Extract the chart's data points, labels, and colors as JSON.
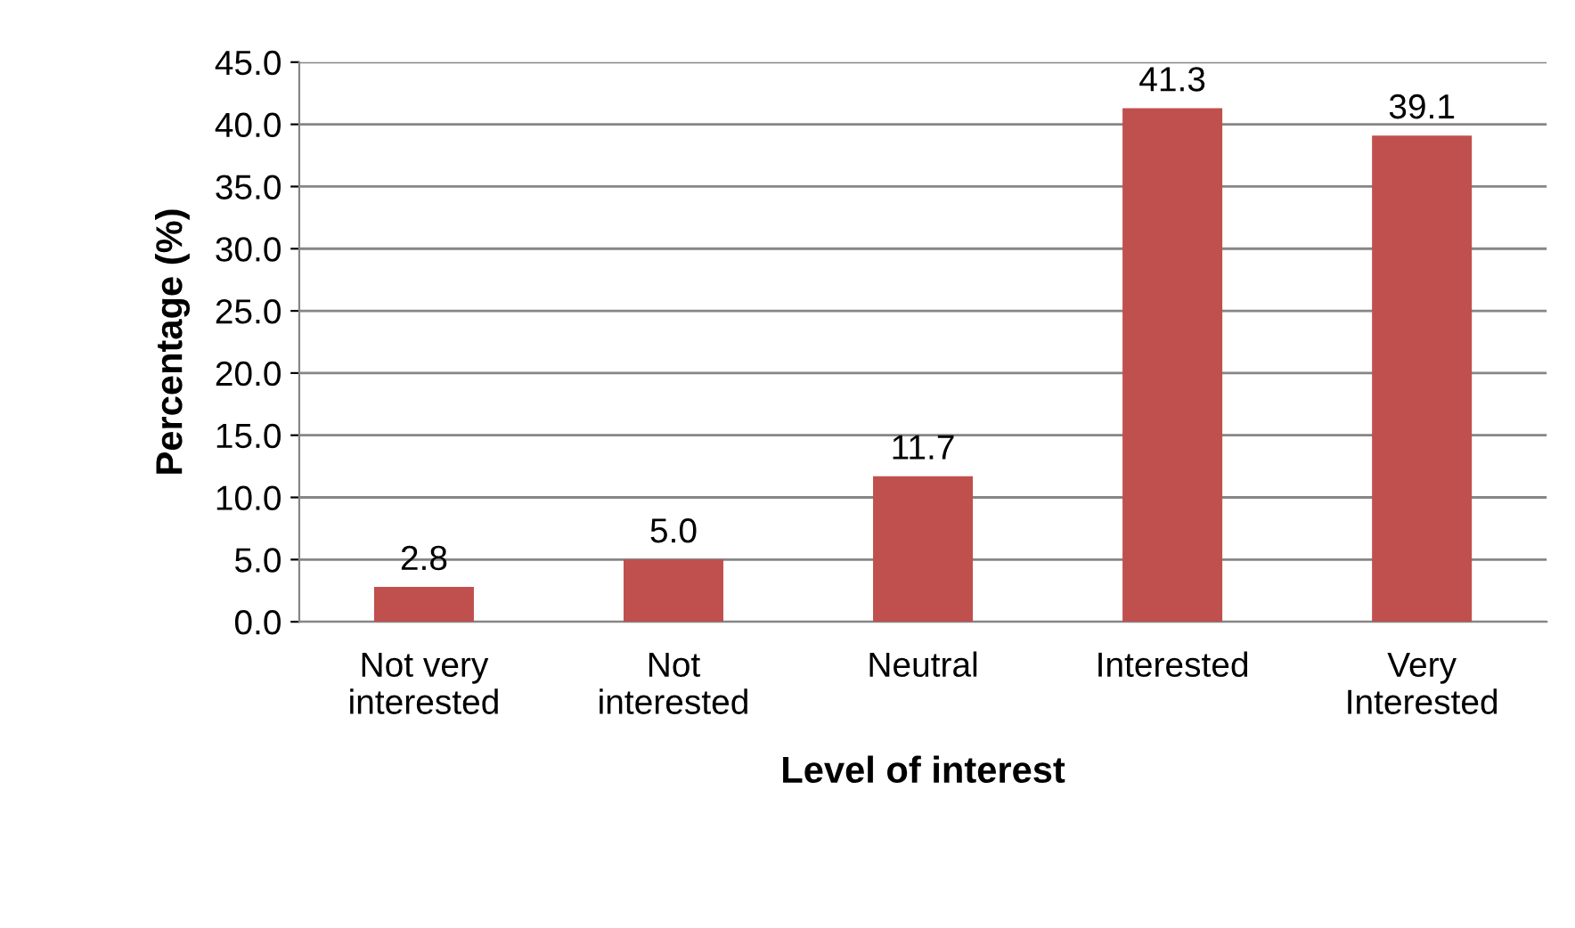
{
  "chart_data": {
    "type": "bar",
    "xlabel": "Level of interest",
    "ylabel": "Percentage (%)",
    "categories": [
      "Not very\ninterested",
      "Not\ninterested",
      "Neutral",
      "Interested",
      "Very\nInterested"
    ],
    "values": [
      2.8,
      5.0,
      11.7,
      41.3,
      39.1
    ],
    "value_labels": [
      "2.8",
      "5.0",
      "11.7",
      "41.3",
      "39.1"
    ],
    "color": "#c0504d",
    "ylim": [
      0,
      45
    ],
    "yticks": [
      {
        "value": 0,
        "label": "0.0"
      },
      {
        "value": 5,
        "label": "5.0"
      },
      {
        "value": 10,
        "label": "10.0"
      },
      {
        "value": 15,
        "label": "15.0"
      },
      {
        "value": 20,
        "label": "20.0"
      },
      {
        "value": 25,
        "label": "25.0"
      },
      {
        "value": 30,
        "label": "30.0"
      },
      {
        "value": 35,
        "label": "35.0"
      },
      {
        "value": 40,
        "label": "40.0"
      },
      {
        "value": 45,
        "label": "45.0"
      }
    ],
    "grid": "y",
    "legend": false
  }
}
